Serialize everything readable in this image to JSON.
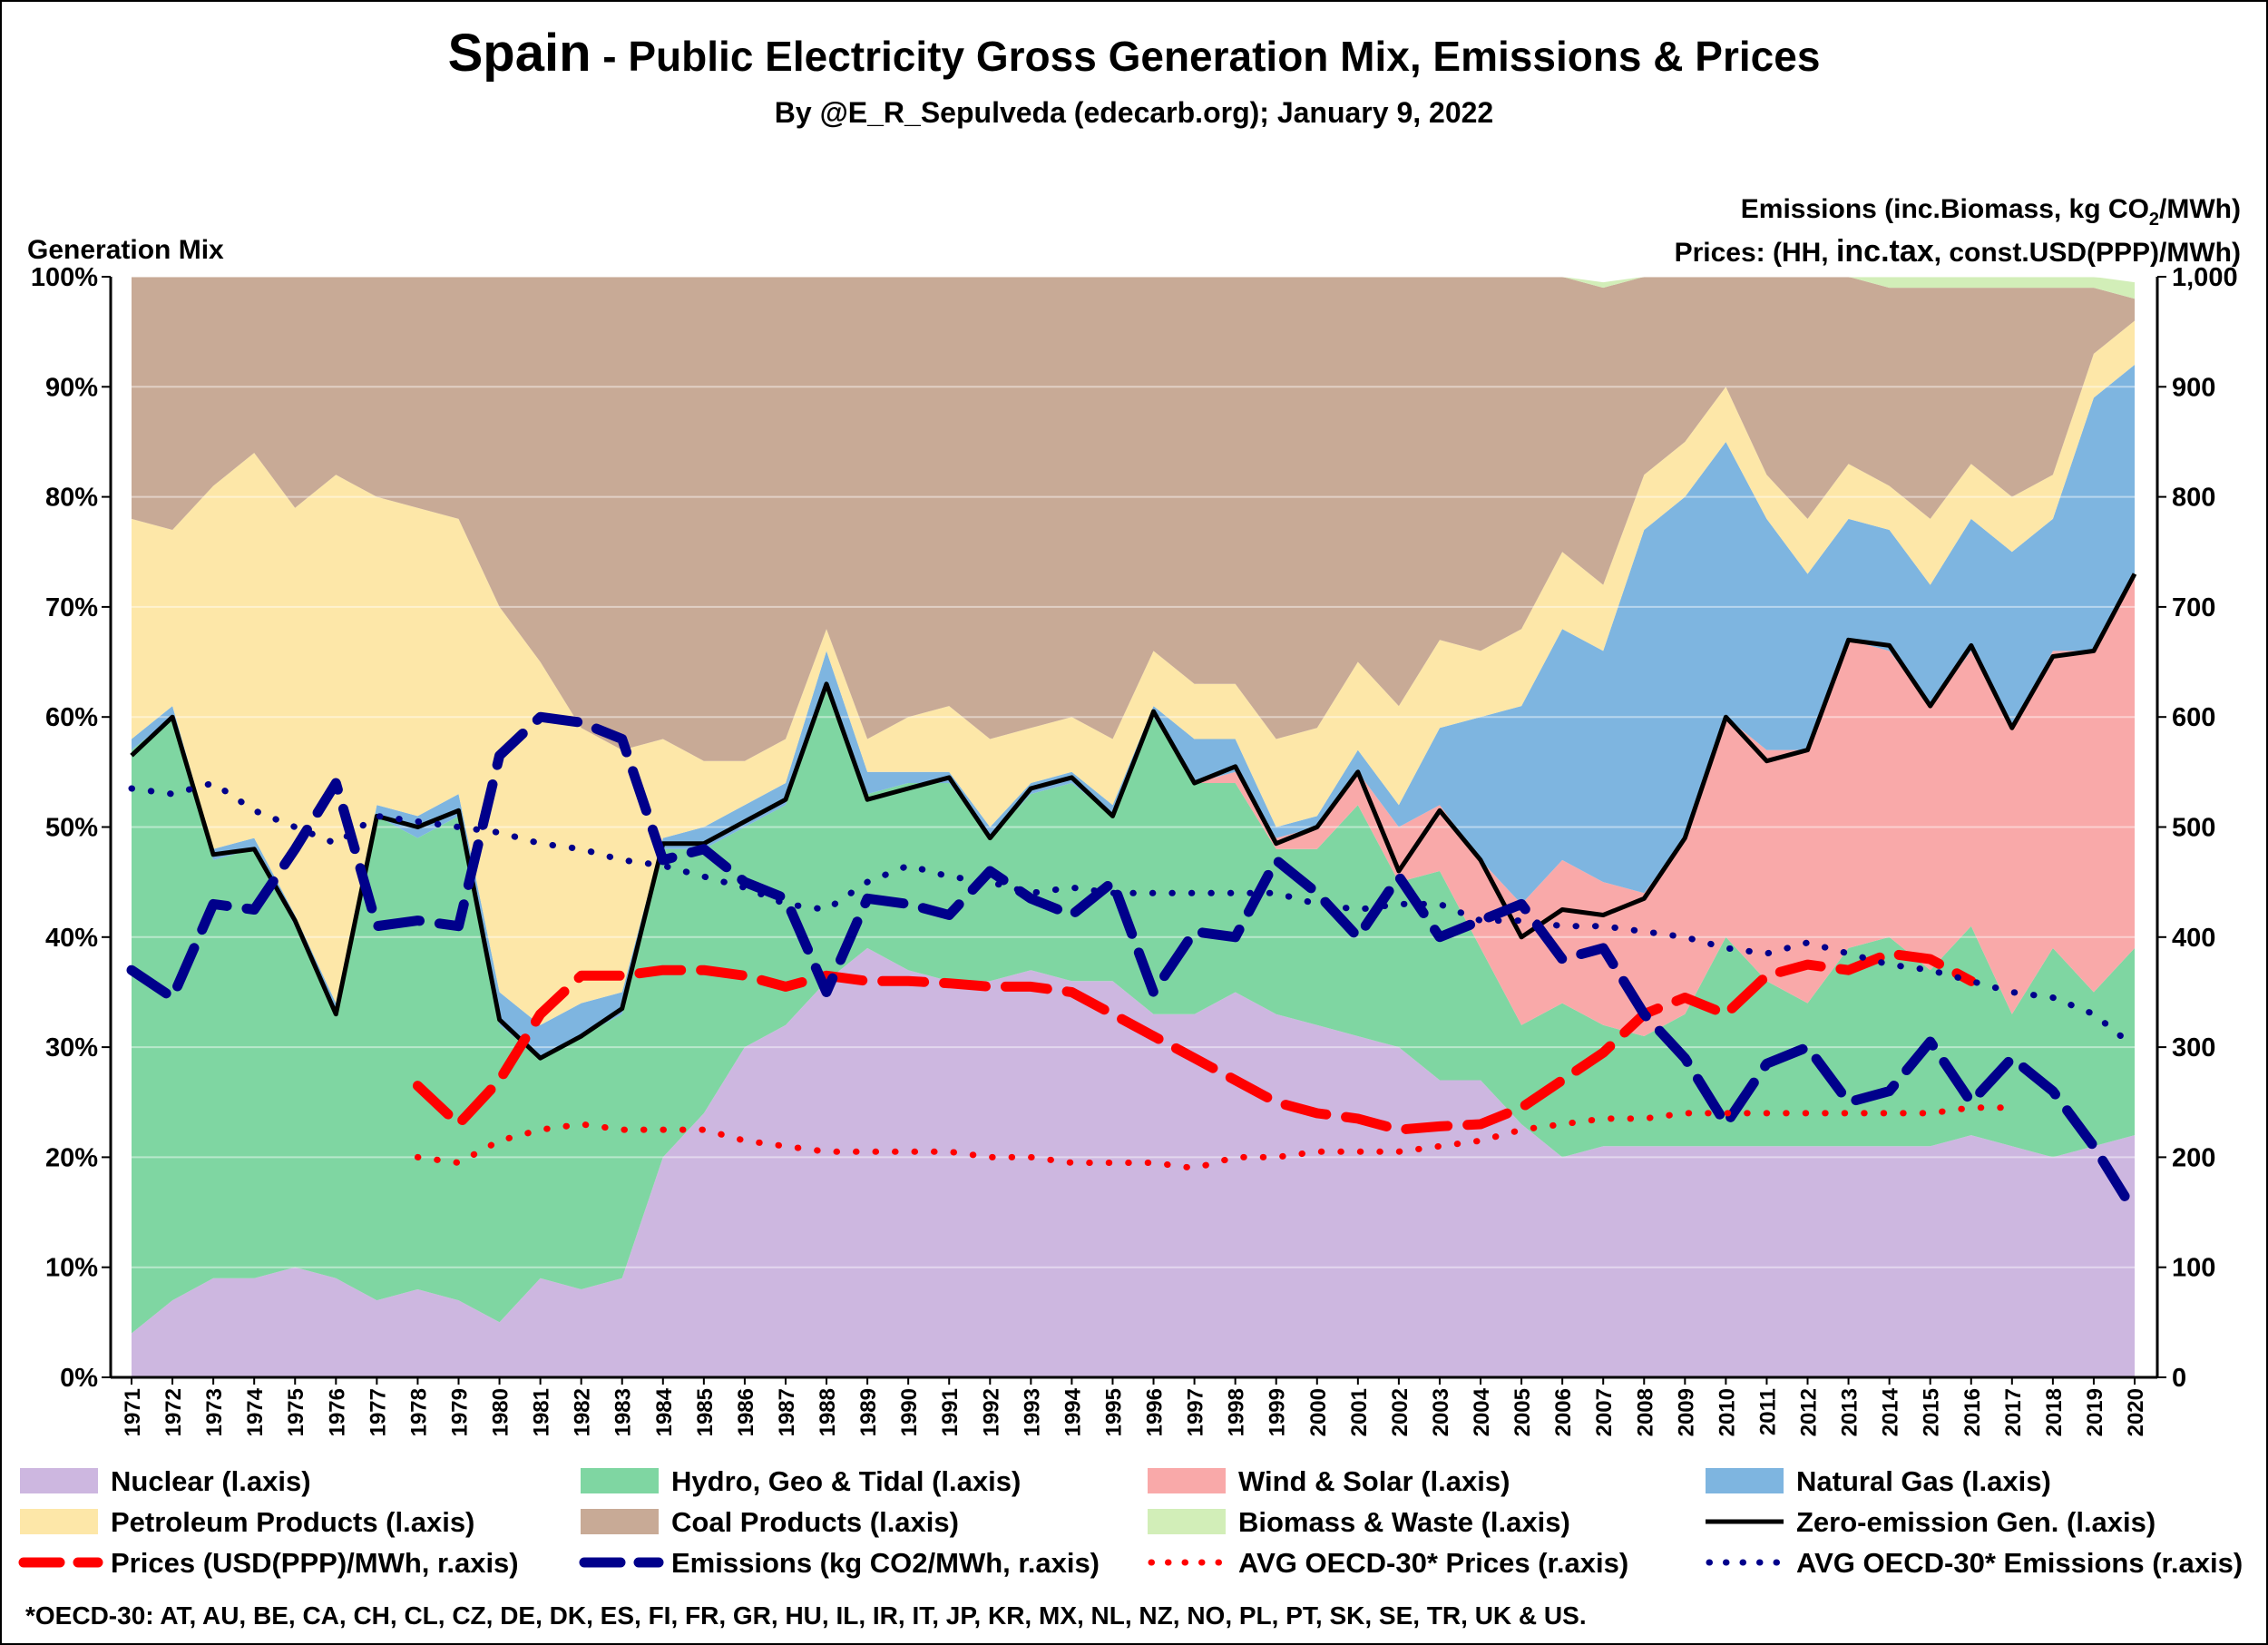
{
  "chart_data": {
    "type": "area",
    "title_main": "Spain",
    "title_rest": " - Public Electricity Gross Generation Mix, Emissions & Prices",
    "subtitle": "By @E_R_Sepulveda (edecarb.org); January 9, 2022",
    "left_axis_title": "Generation Mix",
    "right_axis_title_1a": "Emissions (inc.Biomass, kg CO",
    "right_axis_title_1sub": "2",
    "right_axis_title_1b": "/MWh)",
    "right_axis_title_2a": "Prices: (HH, ",
    "right_axis_title_2b": "inc.tax",
    "right_axis_title_2c": ", const.USD(PPP)/MWh)",
    "left_ylim": [
      0,
      100
    ],
    "right_ylim": [
      0,
      1000
    ],
    "left_ticks": [
      "0%",
      "10%",
      "20%",
      "30%",
      "40%",
      "50%",
      "60%",
      "70%",
      "80%",
      "90%",
      "100%"
    ],
    "right_ticks": [
      "0",
      "100",
      "200",
      "300",
      "400",
      "500",
      "600",
      "700",
      "800",
      "900",
      "1,000"
    ],
    "years": [
      1971,
      1972,
      1973,
      1974,
      1975,
      1976,
      1977,
      1978,
      1979,
      1980,
      1981,
      1982,
      1983,
      1984,
      1985,
      1986,
      1987,
      1988,
      1989,
      1990,
      1991,
      1992,
      1993,
      1994,
      1995,
      1996,
      1997,
      1998,
      1999,
      2000,
      2001,
      2002,
      2003,
      2004,
      2005,
      2006,
      2007,
      2008,
      2009,
      2010,
      2011,
      2012,
      2013,
      2014,
      2015,
      2016,
      2017,
      2018,
      2019,
      2020
    ],
    "stack_series": [
      {
        "name": "Nuclear (l.axis)",
        "color": "#cdb7e0",
        "values": [
          4,
          7,
          9,
          9,
          10,
          9,
          7,
          8,
          7,
          5,
          9,
          8,
          9,
          20,
          24,
          30,
          32,
          36,
          39,
          37,
          36,
          36,
          37,
          36,
          36,
          33,
          33,
          35,
          33,
          32,
          31,
          30,
          27,
          27,
          23,
          20,
          21,
          21,
          21,
          21,
          21,
          21,
          21,
          21,
          21,
          22,
          21,
          20,
          21,
          22
        ]
      },
      {
        "name": "Hydro, Geo & Tidal (l.axis)",
        "color": "#7fd6a2",
        "values": [
          53,
          53,
          38,
          39,
          31,
          24,
          44,
          41,
          44,
          27,
          20,
          23,
          24,
          28,
          24,
          20,
          20,
          27,
          14,
          17,
          18,
          13,
          16,
          18,
          15,
          27,
          21,
          19,
          15,
          16,
          21,
          15,
          19,
          12,
          9,
          14,
          11,
          10,
          12,
          19,
          15,
          13,
          18,
          19,
          16,
          19,
          12,
          19,
          14,
          17
        ]
      },
      {
        "name": "Wind & Solar (l.axis)",
        "color": "#f9a9a9",
        "values": [
          0,
          0,
          0,
          0,
          0,
          0,
          0,
          0,
          0,
          0,
          0,
          0,
          0,
          0,
          0,
          0,
          0,
          0,
          0,
          0,
          0,
          0,
          0,
          0,
          0,
          0,
          0,
          1,
          1,
          2,
          3,
          5,
          6,
          8,
          11,
          13,
          13,
          13,
          16,
          20,
          21,
          23,
          28,
          26,
          24,
          25,
          26,
          27,
          31,
          34
        ]
      },
      {
        "name": "Natural Gas (l.axis)",
        "color": "#7eb5e0",
        "values": [
          1,
          1,
          1,
          1,
          1,
          1,
          1,
          2,
          2,
          3,
          3,
          3,
          2,
          1,
          2,
          2,
          2,
          3,
          2,
          1,
          1,
          1,
          1,
          1,
          1,
          1,
          4,
          3,
          1,
          1,
          2,
          2,
          7,
          13,
          18,
          21,
          21,
          33,
          31,
          25,
          21,
          16,
          11,
          11,
          11,
          12,
          16,
          12,
          23,
          19
        ]
      },
      {
        "name": "Petroleum Products (l.axis)",
        "color": "#fde7a8",
        "values": [
          20,
          16,
          33,
          35,
          37,
          48,
          28,
          28,
          25,
          35,
          33,
          25,
          22,
          9,
          6,
          4,
          4,
          2,
          3,
          5,
          6,
          8,
          5,
          5,
          6,
          5,
          5,
          5,
          8,
          8,
          8,
          9,
          8,
          6,
          7,
          7,
          6,
          5,
          5,
          5,
          4,
          5,
          5,
          4,
          6,
          5,
          5,
          4,
          4,
          4
        ]
      },
      {
        "name": "Coal Products (l.axis)",
        "color": "#c8aa96",
        "values": [
          22,
          23,
          19,
          16,
          21,
          18,
          20,
          21,
          22,
          30,
          35,
          41,
          43,
          42,
          44,
          44,
          42,
          32,
          42,
          40,
          39,
          42,
          41,
          41,
          42,
          34,
          37,
          37,
          42,
          41,
          35,
          39,
          33,
          34,
          32,
          25,
          27,
          18,
          15,
          10,
          18,
          22,
          17,
          18,
          21,
          16,
          19,
          17,
          6,
          2
        ]
      },
      {
        "name": "Biomass & Waste (l.axis)",
        "color": "#d2eeb8",
        "values": [
          0,
          0,
          0,
          0,
          0,
          0,
          0,
          0,
          0,
          0,
          0,
          0,
          0,
          0,
          0,
          0,
          0,
          0,
          0,
          0,
          0,
          0,
          0,
          0,
          0,
          0,
          0.5,
          0.5,
          0.5,
          0.5,
          0.5,
          0.5,
          0.6,
          0.6,
          0.6,
          0.5,
          0.5,
          0.5,
          0.6,
          0.5,
          0.5,
          0.5,
          1,
          1,
          1.2,
          1.2,
          1.5,
          1.5,
          1.5,
          1.5
        ]
      }
    ],
    "zero_emission": {
      "name": "Zero-emission Gen. (l.axis)",
      "color": "#000000",
      "values": [
        56.5,
        60,
        47.5,
        48,
        41.5,
        33,
        51,
        50,
        51.5,
        32.5,
        29,
        31,
        33.5,
        48.5,
        48.5,
        50.5,
        52.5,
        63,
        52.5,
        53.5,
        54.5,
        49,
        53.5,
        54.5,
        51,
        60.5,
        54,
        55.5,
        48.5,
        50,
        55,
        46,
        51.5,
        47,
        40,
        42.5,
        42,
        43.5,
        49,
        60,
        56,
        57,
        67,
        66.5,
        61,
        66.5,
        59,
        65.5,
        66,
        73
      ]
    },
    "right_series": [
      {
        "name": "Prices (USD(PPP)/MWh, r.axis)",
        "color": "#ff0000",
        "style": "dash-thick",
        "start": 1978,
        "values": [
          265,
          230,
          270,
          330,
          365,
          365,
          370,
          370,
          365,
          355,
          365,
          360,
          360,
          358,
          355,
          355,
          350,
          330,
          310,
          290,
          270,
          250,
          240,
          235,
          225,
          228,
          230,
          245,
          270,
          295,
          330,
          345,
          330,
          365,
          375,
          370,
          385,
          380,
          360
        ]
      },
      {
        "name": "Emissions (kg CO2/MWh, r.axis)",
        "color": "#00008b",
        "style": "dash-thick",
        "start": 1971,
        "values": [
          370,
          345,
          430,
          425,
          480,
          540,
          410,
          415,
          410,
          565,
          600,
          595,
          580,
          470,
          480,
          450,
          435,
          350,
          435,
          430,
          420,
          460,
          435,
          420,
          450,
          350,
          405,
          400,
          470,
          440,
          400,
          455,
          400,
          415,
          430,
          380,
          390,
          330,
          290,
          230,
          285,
          300,
          250,
          260,
          305,
          250,
          290,
          260,
          210,
          150
        ]
      },
      {
        "name": "AVG OECD-30* Prices (r.axis)",
        "color": "#ff0000",
        "style": "dot",
        "start": 1978,
        "values": [
          200,
          195,
          215,
          225,
          230,
          225,
          225,
          225,
          215,
          210,
          205,
          205,
          205,
          205,
          200,
          200,
          195,
          195,
          195,
          190,
          200,
          200,
          205,
          205,
          205,
          210,
          215,
          225,
          230,
          235,
          235,
          240,
          240,
          240,
          240,
          240,
          240,
          240,
          245,
          245
        ]
      },
      {
        "name": "AVG OECD-30* Emissions (r.axis)",
        "color": "#00008b",
        "style": "dot",
        "start": 1971,
        "values": [
          535,
          530,
          540,
          515,
          500,
          485,
          510,
          505,
          500,
          495,
          485,
          480,
          470,
          465,
          455,
          445,
          430,
          425,
          450,
          465,
          455,
          450,
          440,
          445,
          440,
          440,
          440,
          440,
          440,
          430,
          425,
          430,
          430,
          415,
          415,
          410,
          410,
          405,
          400,
          390,
          385,
          395,
          385,
          375,
          370,
          360,
          350,
          345,
          330,
          300
        ]
      }
    ],
    "legend": [
      {
        "label": "Nuclear (l.axis)",
        "type": "box",
        "color": "#cdb7e0"
      },
      {
        "label": "Hydro, Geo & Tidal (l.axis)",
        "type": "box",
        "color": "#7fd6a2"
      },
      {
        "label": "Wind & Solar (l.axis)",
        "type": "box",
        "color": "#f9a9a9"
      },
      {
        "label": "Natural Gas (l.axis)",
        "type": "box",
        "color": "#7eb5e0"
      },
      {
        "label": "Petroleum Products (l.axis)",
        "type": "box",
        "color": "#fde7a8"
      },
      {
        "label": "Coal Products (l.axis)",
        "type": "box",
        "color": "#c8aa96"
      },
      {
        "label": "Biomass & Waste (l.axis)",
        "type": "box",
        "color": "#d2eeb8"
      },
      {
        "label": "Zero-emission Gen. (l.axis)",
        "type": "line",
        "color": "#000000"
      },
      {
        "label": "Prices (USD(PPP)/MWh, r.axis)",
        "type": "dash",
        "color": "#ff0000"
      },
      {
        "label": "Emissions (kg CO2/MWh, r.axis)",
        "type": "dash",
        "color": "#00008b"
      },
      {
        "label": "AVG OECD-30* Prices (r.axis)",
        "type": "dot",
        "color": "#ff0000"
      },
      {
        "label": "AVG OECD-30* Emissions (r.axis)",
        "type": "dot",
        "color": "#00008b"
      }
    ],
    "footnote": "*OECD-30: AT, AU, BE, CA, CH, CL, CZ, DE, DK, ES, FI, FR, GR, HU, IL, IR, IT, JP, KR, MX, NL, NZ, NO, PL, PT, SK, SE, TR, UK & US."
  }
}
